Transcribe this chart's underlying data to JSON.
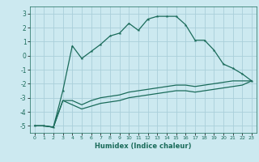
{
  "title": "",
  "xlabel": "Humidex (Indice chaleur)",
  "ylabel": "",
  "bg_color": "#cce9f0",
  "grid_color": "#aacfda",
  "line_color": "#1a6b5a",
  "xlim": [
    -0.5,
    23.5
  ],
  "ylim": [
    -5.5,
    3.5
  ],
  "yticks": [
    -5,
    -4,
    -3,
    -2,
    -1,
    0,
    1,
    2,
    3
  ],
  "xticks": [
    0,
    1,
    2,
    3,
    4,
    5,
    6,
    7,
    8,
    9,
    10,
    11,
    12,
    13,
    14,
    15,
    16,
    17,
    18,
    19,
    20,
    21,
    22,
    23
  ],
  "series1_x": [
    0,
    1,
    2,
    3,
    4,
    5,
    6,
    7,
    8,
    9,
    10,
    11,
    12,
    13,
    14,
    15,
    16,
    17,
    18,
    19,
    20,
    21,
    22,
    23
  ],
  "series1_y": [
    -5,
    -5,
    -5.1,
    -2.5,
    0.7,
    -0.2,
    0.3,
    0.8,
    1.4,
    1.6,
    2.3,
    1.8,
    2.6,
    2.8,
    2.8,
    2.8,
    2.2,
    1.1,
    1.1,
    0.4,
    -0.6,
    -0.9,
    -1.3,
    -1.8
  ],
  "series2_x": [
    0,
    1,
    2,
    3,
    4,
    5,
    6,
    7,
    8,
    9,
    10,
    11,
    12,
    13,
    14,
    15,
    16,
    17,
    18,
    19,
    20,
    21,
    22,
    23
  ],
  "series2_y": [
    -5,
    -5,
    -5.1,
    -3.2,
    -3.2,
    -3.5,
    -3.2,
    -3.0,
    -2.9,
    -2.8,
    -2.6,
    -2.5,
    -2.4,
    -2.3,
    -2.2,
    -2.1,
    -2.1,
    -2.2,
    -2.1,
    -2.0,
    -1.9,
    -1.8,
    -1.8,
    -1.8
  ],
  "series3_x": [
    0,
    1,
    2,
    3,
    4,
    5,
    6,
    7,
    8,
    9,
    10,
    11,
    12,
    13,
    14,
    15,
    16,
    17,
    18,
    19,
    20,
    21,
    22,
    23
  ],
  "series3_y": [
    -5,
    -5,
    -5.1,
    -3.2,
    -3.5,
    -3.8,
    -3.6,
    -3.4,
    -3.3,
    -3.2,
    -3.0,
    -2.9,
    -2.8,
    -2.7,
    -2.6,
    -2.5,
    -2.5,
    -2.6,
    -2.5,
    -2.4,
    -2.3,
    -2.2,
    -2.1,
    -1.8
  ]
}
